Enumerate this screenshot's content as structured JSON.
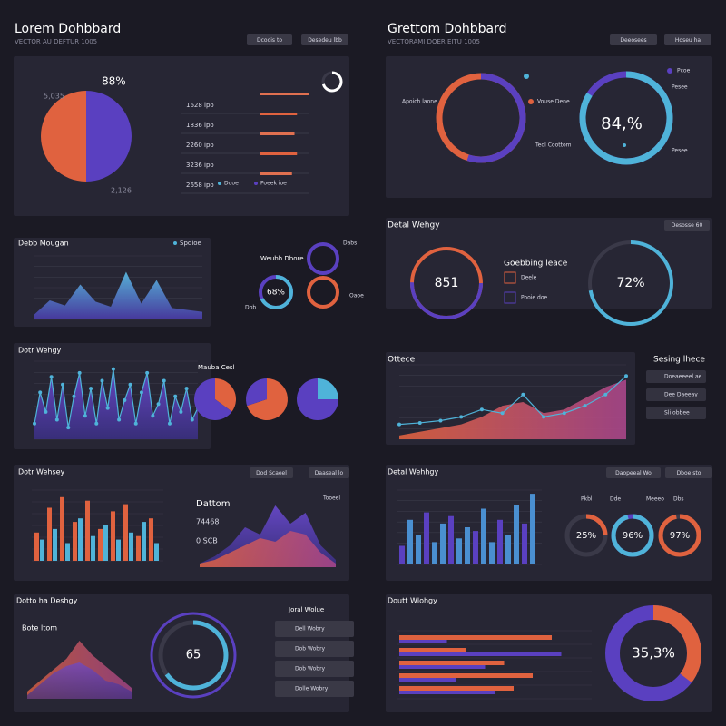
{
  "left_header": {
    "title": "Lorem Dohbbard",
    "subtitle": "VECTOR AU DEFTUR 1005",
    "buttons": [
      "Dcoois to",
      "Desedeu lbb"
    ]
  },
  "right_header": {
    "title": "Grettom Dohbbard",
    "subtitle": "VECTORAMI DOER EITU 1005",
    "buttons": [
      "Deeosees",
      "Hoseu ha"
    ]
  },
  "overview": {
    "pie_label": "88%",
    "side_labels": [
      "5,035",
      "2,126"
    ],
    "pie": [
      50,
      50
    ],
    "rows": [
      "1628 ipo",
      "1836 ipo",
      "2260 ipo",
      "3236 ipo",
      "2658 ipo"
    ],
    "row_bars": [
      100,
      75,
      70,
      75,
      65
    ],
    "legend": [
      "Duoe",
      "Poeek ioe"
    ],
    "gauge": 70
  },
  "rings": {
    "title": "Apoich laone",
    "labels": [
      "Vouse Dene",
      "Tedl Coottom"
    ],
    "legend": [
      "Pcoe",
      "Pesee"
    ],
    "outer": 55,
    "center": {
      "value": 84,
      "label": "84,%"
    }
  },
  "area1": {
    "title": "Debb Mougan",
    "legend": "Spdioe",
    "values": [
      8,
      30,
      22,
      55,
      28,
      20,
      75,
      25,
      62,
      18,
      15,
      12
    ]
  },
  "circles": {
    "title": "Weubh Dbore",
    "center": {
      "value": 68,
      "label": "68%"
    },
    "labels": [
      "Dabs",
      "Oaoe",
      "Dbb"
    ]
  },
  "gauges": {
    "title": "Detal Wehgy",
    "button": "Desosse 60",
    "heading": "Goebbing leace",
    "items": [
      "Deele",
      "Pooie doe"
    ],
    "left_label": "851",
    "right": {
      "value": 72,
      "label": "72%"
    }
  },
  "spikes": {
    "title": "Dotr Wehgy",
    "values": [
      20,
      60,
      35,
      80,
      25,
      70,
      15,
      55,
      85,
      30,
      65,
      20,
      75,
      40,
      90,
      25,
      50,
      70,
      20,
      60,
      85,
      30,
      45,
      75,
      20,
      55,
      35,
      65,
      25,
      40
    ],
    "pies_title": "Mauba Cesl",
    "pies": [
      [
        35,
        65
      ],
      [
        70,
        30
      ],
      [
        25,
        75
      ]
    ]
  },
  "trend": {
    "title": "Ottece",
    "area": [
      5,
      10,
      15,
      20,
      30,
      45,
      50,
      35,
      40,
      55,
      70,
      80
    ],
    "line": [
      20,
      22,
      25,
      30,
      40,
      35,
      60,
      30,
      35,
      45,
      60,
      85
    ],
    "side_title": "Sesing lhece",
    "side_items": [
      "Doeaeeeel ae",
      "Dee Daeeay",
      "Sli obbee"
    ]
  },
  "bars1": {
    "title": "Dotr Wehsey",
    "buttons": [
      "Dod Scaeel",
      "Daaseal lo"
    ],
    "red": [
      40,
      75,
      90,
      55,
      85,
      45,
      70,
      80,
      35,
      60
    ],
    "blue": [
      30,
      45,
      25,
      60,
      35,
      50,
      30,
      40,
      55,
      25
    ],
    "labels": [
      "Dattom",
      "74468",
      "0 SCB",
      "Tooeel"
    ],
    "area_a": [
      5,
      15,
      30,
      55,
      45,
      85,
      60,
      75,
      30,
      10
    ],
    "area_b": [
      5,
      10,
      20,
      30,
      40,
      35,
      50,
      45,
      20,
      5
    ]
  },
  "bars2": {
    "title": "Detal Wehhgy",
    "buttons": [
      "Daopeeal Wo",
      "Dboe sto"
    ],
    "values": [
      25,
      60,
      40,
      70,
      30,
      55,
      65,
      35,
      50,
      45,
      75,
      30,
      60,
      40,
      80,
      55,
      95
    ],
    "legend": [
      "Pkbl",
      "Dde",
      "Meeeo",
      "Dbs"
    ],
    "donuts": [
      {
        "value": 25,
        "label": "25%"
      },
      {
        "value": 96,
        "label": "96%"
      },
      {
        "value": 97,
        "label": "97%"
      }
    ]
  },
  "bottom_left": {
    "title": "Dotto ha Deshgy",
    "subtitle": "Bote ltom",
    "area_a": [
      10,
      25,
      40,
      55,
      80,
      60,
      45,
      30,
      15
    ],
    "area_b": [
      5,
      20,
      35,
      45,
      50,
      40,
      25,
      20,
      10
    ],
    "ring": {
      "value": 65,
      "label": "65"
    },
    "list_title": "Joral Wolue",
    "list": [
      "Dell Wobry",
      "Dob Wobry",
      "Dob Wobry",
      "Dolle Wobry"
    ]
  },
  "bottom_right": {
    "title": "Doutt Wlohgy",
    "red": [
      80,
      35,
      55,
      70,
      60
    ],
    "blue": [
      25,
      85,
      45,
      30,
      50
    ],
    "donut": {
      "value": 35.3,
      "label": "35,3%"
    }
  }
}
